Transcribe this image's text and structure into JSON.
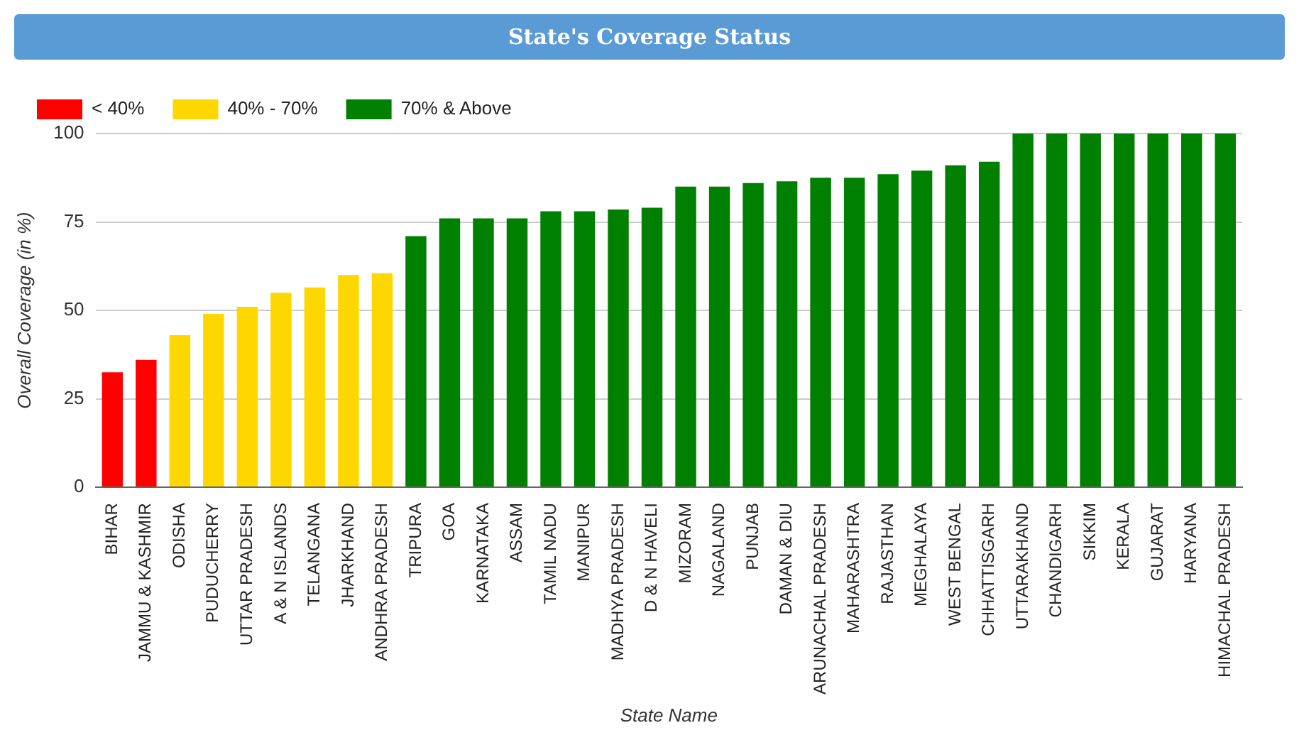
{
  "chart_data": {
    "type": "bar",
    "title": "State's Coverage Status",
    "xlabel": "State Name",
    "ylabel": "Overall Coverage (in %)",
    "categories": [
      "BIHAR",
      "JAMMU & KASHMIR",
      "ODISHA",
      "PUDUCHERRY",
      "UTTAR PRADESH",
      "A & N ISLANDS",
      "TELANGANA",
      "JHARKHAND",
      "ANDHRA PRADESH",
      "TRIPURA",
      "GOA",
      "KARNATAKA",
      "ASSAM",
      "TAMIL NADU",
      "MANIPUR",
      "MADHYA PRADESH",
      "D & N HAVELI",
      "MIZORAM",
      "NAGALAND",
      "PUNJAB",
      "DAMAN & DIU",
      "ARUNACHAL PRADESH",
      "MAHARASHTRA",
      "RAJASTHAN",
      "MEGHALAYA",
      "WEST BENGAL",
      "CHHATTISGARH",
      "UTTARAKHAND",
      "CHANDIGARH",
      "SIKKIM",
      "KERALA",
      "GUJARAT",
      "HARYANA",
      "HIMACHAL PRADESH"
    ],
    "series": [
      {
        "name": "< 40%",
        "color": "#ff0000",
        "values": [
          32.5,
          36,
          null,
          null,
          null,
          null,
          null,
          null,
          null,
          null,
          null,
          null,
          null,
          null,
          null,
          null,
          null,
          null,
          null,
          null,
          null,
          null,
          null,
          null,
          null,
          null,
          null,
          null,
          null,
          null,
          null,
          null,
          null,
          null
        ]
      },
      {
        "name": "40% - 70%",
        "color": "#ffd700",
        "values": [
          null,
          null,
          43,
          49,
          51,
          55,
          56.5,
          60,
          60.5,
          null,
          null,
          null,
          null,
          null,
          null,
          null,
          null,
          null,
          null,
          null,
          null,
          null,
          null,
          null,
          null,
          null,
          null,
          null,
          null,
          null,
          null,
          null,
          null,
          null
        ]
      },
      {
        "name": "70% & Above",
        "color": "#008000",
        "values": [
          null,
          null,
          null,
          null,
          null,
          null,
          null,
          null,
          null,
          71,
          76,
          76,
          76,
          78,
          78,
          78.5,
          79,
          85,
          85,
          86,
          86.5,
          87.5,
          87.5,
          88.5,
          89.5,
          91,
          92,
          100,
          100,
          100,
          100,
          100,
          100,
          100
        ]
      }
    ],
    "ylim": [
      0,
      100
    ],
    "yticks": [
      0,
      25,
      50,
      75,
      100
    ],
    "grid": "y",
    "legend": "top left"
  }
}
